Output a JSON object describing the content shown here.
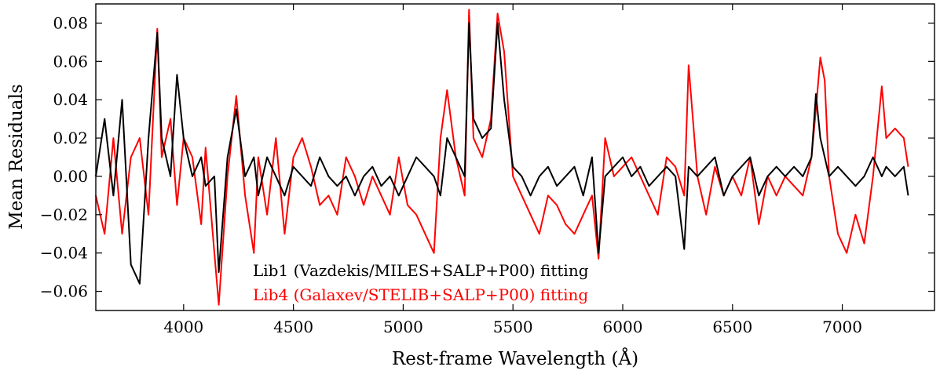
{
  "chart_data": {
    "type": "line",
    "title": "",
    "xlabel": "Rest-frame Wavelength (Å)",
    "ylabel": "Mean Residuals",
    "xlim": [
      3600,
      7420
    ],
    "ylim": [
      -0.07,
      0.09
    ],
    "x_ticks": [
      4000,
      4500,
      5000,
      5500,
      6000,
      6500,
      7000
    ],
    "y_ticks": [
      -0.06,
      -0.04,
      -0.02,
      0.0,
      0.02,
      0.04,
      0.06,
      0.08
    ],
    "x_tick_labels": [
      "4000",
      "4500",
      "5000",
      "5500",
      "6000",
      "6500",
      "7000"
    ],
    "y_tick_labels": [
      "−0.06",
      "−0.04",
      "−0.02",
      "0.00",
      "0.02",
      "0.04",
      "0.06",
      "0.08"
    ],
    "grid": false,
    "legend_position": "bottom-center",
    "series": [
      {
        "name": "Lib4 (Galaxev/STELIB+SALP+P00) fitting",
        "color": "#ff0000",
        "x": [
          3600,
          3640,
          3680,
          3720,
          3760,
          3800,
          3840,
          3880,
          3900,
          3940,
          3970,
          4000,
          4040,
          4080,
          4100,
          4140,
          4160,
          4200,
          4240,
          4280,
          4320,
          4340,
          4380,
          4420,
          4460,
          4500,
          4540,
          4580,
          4620,
          4660,
          4700,
          4740,
          4780,
          4820,
          4860,
          4900,
          4940,
          4980,
          5020,
          5060,
          5100,
          5140,
          5170,
          5200,
          5240,
          5280,
          5300,
          5320,
          5360,
          5400,
          5430,
          5460,
          5500,
          5540,
          5580,
          5620,
          5660,
          5700,
          5740,
          5780,
          5820,
          5860,
          5890,
          5920,
          5960,
          6000,
          6040,
          6080,
          6120,
          6160,
          6200,
          6240,
          6280,
          6300,
          6340,
          6380,
          6420,
          6460,
          6500,
          6540,
          6580,
          6620,
          6660,
          6700,
          6740,
          6780,
          6820,
          6860,
          6880,
          6900,
          6920,
          6940,
          6980,
          7020,
          7060,
          7100,
          7140,
          7180,
          7200,
          7240,
          7280,
          7300
        ],
        "y": [
          -0.01,
          -0.03,
          0.02,
          -0.03,
          0.01,
          0.02,
          -0.02,
          0.077,
          0.01,
          0.03,
          -0.015,
          0.02,
          0.01,
          -0.025,
          0.015,
          -0.04,
          -0.067,
          0.0,
          0.042,
          -0.01,
          -0.04,
          0.01,
          -0.02,
          0.02,
          -0.03,
          0.01,
          0.02,
          0.005,
          -0.015,
          -0.01,
          -0.02,
          0.01,
          0.0,
          -0.015,
          0.0,
          -0.01,
          -0.02,
          0.01,
          -0.015,
          -0.02,
          -0.03,
          -0.04,
          0.02,
          0.045,
          0.01,
          -0.01,
          0.087,
          0.02,
          0.01,
          0.03,
          0.085,
          0.065,
          0.0,
          -0.01,
          -0.02,
          -0.03,
          -0.01,
          -0.015,
          -0.025,
          -0.03,
          -0.02,
          -0.01,
          -0.043,
          0.02,
          0.0,
          0.005,
          0.01,
          0.0,
          -0.01,
          -0.02,
          0.01,
          0.005,
          -0.01,
          0.058,
          0.0,
          -0.02,
          0.005,
          -0.01,
          0.0,
          -0.01,
          0.01,
          -0.025,
          0.0,
          -0.01,
          0.0,
          -0.005,
          -0.01,
          0.01,
          0.035,
          0.062,
          0.05,
          0.0,
          -0.03,
          -0.04,
          -0.02,
          -0.035,
          0.0,
          0.047,
          0.02,
          0.025,
          0.02,
          0.005
        ]
      },
      {
        "name": "Lib1 (Vazdekis/MILES+SALP+P00) fitting",
        "color": "#000000",
        "x": [
          3600,
          3640,
          3680,
          3720,
          3760,
          3800,
          3840,
          3880,
          3900,
          3940,
          3970,
          4000,
          4040,
          4080,
          4100,
          4140,
          4160,
          4200,
          4240,
          4280,
          4320,
          4340,
          4380,
          4420,
          4460,
          4500,
          4540,
          4580,
          4620,
          4660,
          4700,
          4740,
          4780,
          4820,
          4860,
          4900,
          4940,
          4980,
          5020,
          5060,
          5100,
          5140,
          5170,
          5200,
          5240,
          5280,
          5300,
          5320,
          5360,
          5400,
          5430,
          5460,
          5500,
          5540,
          5580,
          5620,
          5660,
          5700,
          5740,
          5780,
          5820,
          5860,
          5890,
          5920,
          5960,
          6000,
          6040,
          6080,
          6120,
          6160,
          6200,
          6240,
          6280,
          6300,
          6340,
          6380,
          6420,
          6460,
          6500,
          6540,
          6580,
          6620,
          6660,
          6700,
          6740,
          6780,
          6820,
          6860,
          6880,
          6900,
          6920,
          6940,
          6980,
          7020,
          7060,
          7100,
          7140,
          7180,
          7200,
          7240,
          7280,
          7300
        ],
        "y": [
          0.0,
          0.03,
          -0.01,
          0.04,
          -0.046,
          -0.056,
          0.02,
          0.075,
          0.02,
          0.0,
          0.053,
          0.02,
          0.0,
          0.01,
          -0.005,
          0.0,
          -0.05,
          0.01,
          0.035,
          0.0,
          0.01,
          -0.01,
          0.01,
          0.0,
          -0.01,
          0.005,
          0.0,
          -0.005,
          0.01,
          0.0,
          -0.005,
          0.0,
          -0.01,
          0.0,
          0.005,
          -0.005,
          0.0,
          -0.01,
          0.0,
          0.01,
          0.005,
          0.0,
          -0.01,
          0.02,
          0.01,
          0.0,
          0.08,
          0.03,
          0.02,
          0.025,
          0.08,
          0.04,
          0.005,
          0.0,
          -0.01,
          0.0,
          0.005,
          -0.005,
          0.0,
          0.005,
          -0.01,
          0.01,
          -0.04,
          0.0,
          0.005,
          0.01,
          0.0,
          0.005,
          -0.005,
          0.0,
          0.005,
          0.0,
          -0.038,
          0.005,
          0.0,
          0.005,
          0.01,
          -0.01,
          0.0,
          0.005,
          0.01,
          -0.01,
          0.0,
          0.005,
          0.0,
          0.005,
          0.0,
          0.01,
          0.043,
          0.02,
          0.01,
          0.0,
          0.005,
          0.0,
          -0.005,
          0.0,
          0.01,
          0.0,
          0.005,
          0.0,
          0.005,
          -0.01
        ]
      }
    ]
  }
}
